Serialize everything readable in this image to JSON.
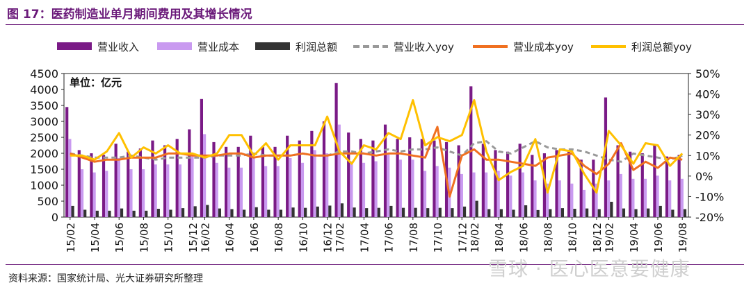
{
  "title": "图 17：医药制造业单月期间费用及其增长情况",
  "source": "资料来源：国家统计局、光大证券研究所整理",
  "watermark": "雪球 · 医心医意要健康",
  "chart_data": {
    "type": "bar",
    "unit_label": "单位：亿元",
    "xlabels_shown": [
      "15/02",
      "15/04",
      "15/06",
      "15/08",
      "15/10",
      "15/12",
      "16/02",
      "16/04",
      "16/06",
      "16/08",
      "16/10",
      "16/12",
      "17/02",
      "17/04",
      "17/06",
      "17/08",
      "17/10",
      "17/12",
      "18/02",
      "18/04",
      "18/06",
      "18/08",
      "18/10",
      "18/12",
      "19/02",
      "19/04",
      "19/06",
      "19/08"
    ],
    "categories": [
      "15/02",
      "15/03",
      "15/04",
      "15/05",
      "15/06",
      "15/07",
      "15/08",
      "15/09",
      "15/10",
      "15/11",
      "15/12",
      "16/02",
      "16/03",
      "16/04",
      "16/05",
      "16/06",
      "16/07",
      "16/08",
      "16/09",
      "16/10",
      "16/11",
      "16/12",
      "17/02",
      "17/03",
      "17/04",
      "17/05",
      "17/06",
      "17/07",
      "17/08",
      "17/09",
      "17/10",
      "17/11",
      "17/12",
      "18/02",
      "18/03",
      "18/04",
      "18/05",
      "18/06",
      "18/07",
      "18/08",
      "18/09",
      "18/10",
      "18/11",
      "18/12",
      "19/02",
      "19/03",
      "19/04",
      "19/05",
      "19/06",
      "19/07",
      "19/08"
    ],
    "y_left": {
      "ylim": [
        0,
        4500
      ],
      "ticks": [
        0,
        500,
        1000,
        1500,
        2000,
        2500,
        3000,
        3500,
        4000,
        4500
      ]
    },
    "y_right": {
      "ylim": [
        -20,
        50
      ],
      "ticks": [
        "-20%",
        "-10%",
        "0%",
        "10%",
        "20%",
        "30%",
        "40%",
        "50%"
      ]
    },
    "colors": {
      "revenue": "#7a1a86",
      "cost": "#c99af0",
      "profit": "#333333",
      "revenue_yoy": "#999999",
      "cost_yoy": "#f07020",
      "profit_yoy": "#ffc000"
    },
    "series": [
      {
        "name": "营业收入",
        "kind": "bar",
        "axis": "left",
        "values": [
          3450,
          2100,
          2000,
          1950,
          2300,
          2050,
          2150,
          2400,
          2250,
          2450,
          2750,
          3700,
          2350,
          2200,
          2200,
          2550,
          2200,
          2200,
          2550,
          2400,
          2700,
          3000,
          4200,
          2650,
          2450,
          2400,
          2900,
          2450,
          2500,
          2450,
          2400,
          2350,
          2250,
          4100,
          2300,
          2100,
          2050,
          2300,
          1950,
          2000,
          2100,
          2050,
          1800,
          1800,
          3750,
          2250,
          2050,
          2000,
          2250,
          1900,
          1950
        ]
      },
      {
        "name": "营业成本",
        "kind": "bar",
        "axis": "left",
        "values": [
          2450,
          1500,
          1400,
          1450,
          1850,
          1500,
          1500,
          1650,
          1650,
          1650,
          1900,
          2600,
          1700,
          1550,
          1550,
          1900,
          1600,
          1600,
          1850,
          1700,
          2100,
          2000,
          2900,
          1750,
          1700,
          1750,
          2000,
          1800,
          1800,
          1450,
          1600,
          1550,
          1350,
          1400,
          1400,
          1450,
          1300,
          1400,
          1150,
          1050,
          1150,
          1050,
          850,
          1050,
          1150,
          1350,
          1200,
          1200,
          1300,
          1150,
          1200
        ]
      },
      {
        "name": "利润总额",
        "kind": "bar",
        "axis": "left",
        "values": [
          350,
          230,
          200,
          200,
          270,
          200,
          200,
          260,
          230,
          280,
          340,
          380,
          270,
          250,
          230,
          310,
          230,
          230,
          300,
          290,
          330,
          360,
          430,
          300,
          280,
          290,
          350,
          290,
          290,
          280,
          290,
          280,
          330,
          510,
          250,
          250,
          230,
          370,
          220,
          250,
          280,
          260,
          270,
          250,
          480,
          270,
          250,
          270,
          350,
          230,
          250
        ]
      },
      {
        "name": "营业收入yoy",
        "kind": "line",
        "axis": "right",
        "dash": true,
        "values": [
          11,
          10,
          9,
          9,
          9,
          10,
          9,
          8,
          9,
          9,
          9,
          9,
          10,
          10,
          10,
          11,
          10,
          10,
          10,
          11,
          10,
          10,
          12,
          12,
          11,
          12,
          13,
          12,
          13,
          13,
          14,
          12,
          10,
          16,
          17,
          12,
          11,
          14,
          17,
          14,
          13,
          13,
          12,
          10,
          8,
          7,
          11,
          10,
          9,
          8,
          10
        ]
      },
      {
        "name": "营业成本yoy",
        "kind": "line",
        "axis": "right",
        "values": [
          11,
          9,
          7,
          8,
          8,
          9,
          9,
          9,
          11,
          11,
          10,
          10,
          10,
          11,
          11,
          9,
          10,
          10,
          10,
          11,
          10,
          10,
          11,
          11,
          11,
          10,
          11,
          11,
          10,
          9,
          24,
          -10,
          10,
          13,
          8,
          8,
          7,
          6,
          5,
          9,
          10,
          11,
          5,
          1,
          6,
          16,
          3,
          7,
          4,
          9,
          8
        ]
      },
      {
        "name": "利润总额yoy",
        "kind": "line",
        "axis": "right",
        "values": [
          10,
          10,
          8,
          12,
          21,
          9,
          14,
          11,
          15,
          11,
          11,
          9,
          11,
          20,
          20,
          10,
          16,
          8,
          15,
          15,
          15,
          29,
          12,
          6,
          15,
          13,
          21,
          18,
          37,
          15,
          19,
          17,
          20,
          37,
          12,
          -2,
          2,
          5,
          18,
          -8,
          13,
          12,
          1,
          -8,
          22,
          15,
          6,
          16,
          15,
          5,
          11
        ]
      }
    ]
  }
}
